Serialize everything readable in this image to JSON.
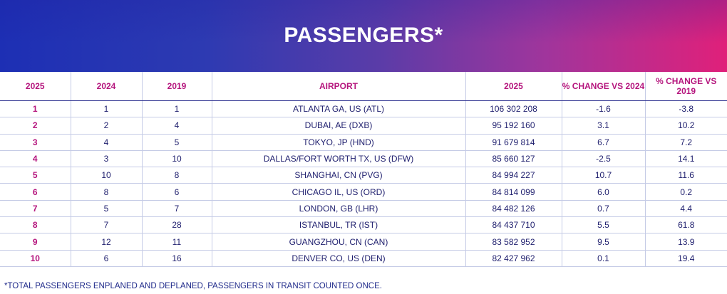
{
  "title": "PASSENGERS*",
  "headers": [
    "2025",
    "2024",
    "2019",
    "AIRPORT",
    "2025",
    "% CHANGE VS 2024",
    "% CHANGE VS 2019"
  ],
  "rows": [
    {
      "r2025": "1",
      "r2024": "1",
      "r2019": "1",
      "airport": "ATLANTA GA, US (ATL)",
      "passengers": "106 302 208",
      "chg2024": "-1.6",
      "chg2019": "-3.8"
    },
    {
      "r2025": "2",
      "r2024": "2",
      "r2019": "4",
      "airport": "DUBAI, AE (DXB)",
      "passengers": "95 192 160",
      "chg2024": "3.1",
      "chg2019": "10.2"
    },
    {
      "r2025": "3",
      "r2024": "4",
      "r2019": "5",
      "airport": "TOKYO, JP (HND)",
      "passengers": "91 679 814",
      "chg2024": "6.7",
      "chg2019": "7.2"
    },
    {
      "r2025": "4",
      "r2024": "3",
      "r2019": "10",
      "airport": "DALLAS/FORT WORTH TX, US (DFW)",
      "passengers": "85 660 127",
      "chg2024": "-2.5",
      "chg2019": "14.1"
    },
    {
      "r2025": "5",
      "r2024": "10",
      "r2019": "8",
      "airport": "SHANGHAI, CN (PVG)",
      "passengers": "84 994 227",
      "chg2024": "10.7",
      "chg2019": "11.6"
    },
    {
      "r2025": "6",
      "r2024": "8",
      "r2019": "6",
      "airport": "CHICAGO IL, US (ORD)",
      "passengers": "84 814 099",
      "chg2024": "6.0",
      "chg2019": "0.2"
    },
    {
      "r2025": "7",
      "r2024": "5",
      "r2019": "7",
      "airport": "LONDON, GB (LHR)",
      "passengers": "84 482 126",
      "chg2024": "0.7",
      "chg2019": "4.4"
    },
    {
      "r2025": "8",
      "r2024": "7",
      "r2019": "28",
      "airport": "ISTANBUL, TR (IST)",
      "passengers": "84 437 710",
      "chg2024": "5.5",
      "chg2019": "61.8"
    },
    {
      "r2025": "9",
      "r2024": "12",
      "r2019": "11",
      "airport": "GUANGZHOU, CN (CAN)",
      "passengers": "83 582 952",
      "chg2024": "9.5",
      "chg2019": "13.9"
    },
    {
      "r2025": "10",
      "r2024": "6",
      "r2019": "16",
      "airport": "DENVER CO, US (DEN)",
      "passengers": "82 427 962",
      "chg2024": "0.1",
      "chg2019": "19.4"
    }
  ],
  "footnote": "*TOTAL PASSENGERS ENPLANED AND DEPLANED, PASSENGERS IN TRANSIT COUNTED ONCE."
}
